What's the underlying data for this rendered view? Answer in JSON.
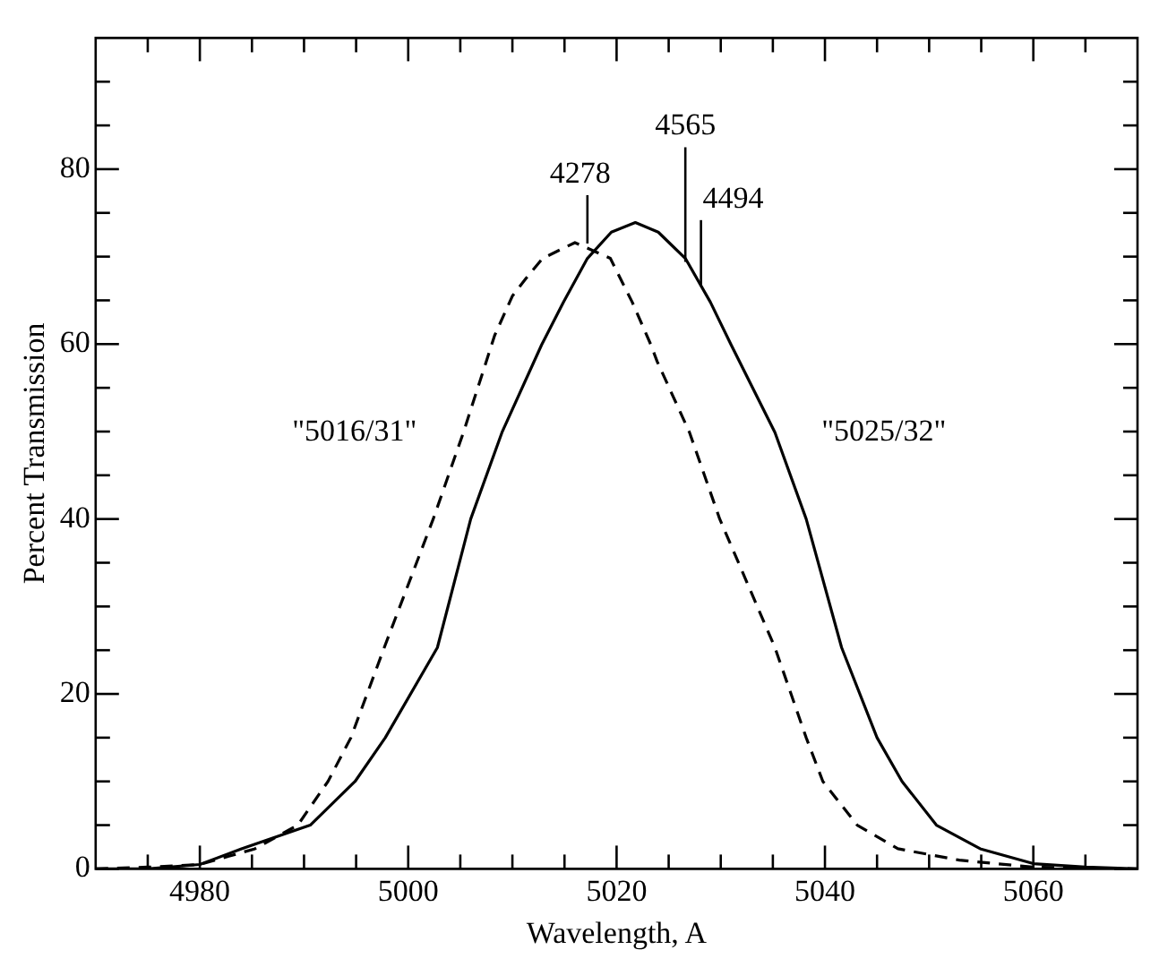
{
  "chart_data": {
    "type": "line",
    "xlabel": "Wavelength, A",
    "ylabel": "Percent Transmission",
    "xlim": [
      4970,
      5070
    ],
    "ylim": [
      0,
      95
    ],
    "xticks": [
      {
        "value": 4975,
        "label": null
      },
      4980,
      {
        "value": 4985,
        "label": null
      },
      {
        "value": 4990,
        "label": null
      },
      {
        "value": 4995,
        "label": null
      },
      5000,
      {
        "value": 5005,
        "label": null
      },
      {
        "value": 5010,
        "label": null
      },
      {
        "value": 5015,
        "label": null
      },
      5020,
      {
        "value": 5025,
        "label": null
      },
      {
        "value": 5030,
        "label": null
      },
      {
        "value": 5035,
        "label": null
      },
      5040,
      {
        "value": 5045,
        "label": null
      },
      {
        "value": 5050,
        "label": null
      },
      {
        "value": 5055,
        "label": null
      },
      5060,
      {
        "value": 5065,
        "label": null
      }
    ],
    "yticks": [
      0,
      {
        "value": 5,
        "label": null
      },
      {
        "value": 10,
        "label": null
      },
      {
        "value": 15,
        "label": null
      },
      20,
      {
        "value": 25,
        "label": null
      },
      {
        "value": 30,
        "label": null
      },
      {
        "value": 35,
        "label": null
      },
      40,
      {
        "value": 45,
        "label": null
      },
      {
        "value": 50,
        "label": null
      },
      {
        "value": 55,
        "label": null
      },
      60,
      {
        "value": 65,
        "label": null
      },
      {
        "value": 70,
        "label": null
      },
      {
        "value": 75,
        "label": null
      },
      80,
      {
        "value": 85,
        "label": null
      },
      {
        "value": 90,
        "label": null
      }
    ],
    "marker": "none",
    "legend": false,
    "series": [
      {
        "name": "\"5016/31\"",
        "color": "#000000",
        "line_style": "dashed",
        "x": [
          4970,
          4975,
          4980,
          4985.3,
          4989.4,
          4992.3,
          4994.5,
          4997.7,
          5002.4,
          5005.3,
          5008.3,
          5010,
          5011.3,
          5012.9,
          5016,
          5019.4,
          5021.5,
          5023.3,
          5023.9,
          5027,
          5029.9,
          5035.2,
          5038.2,
          5039.8,
          5043.1,
          5047,
          5052.9,
          5060,
          5070
        ],
        "values": [
          0,
          0.2,
          0.5,
          2.3,
          5,
          10,
          15,
          25.3,
          40,
          49.9,
          61,
          65.5,
          67.5,
          69.8,
          71.6,
          69.8,
          64.8,
          59.9,
          58,
          49.9,
          40,
          25.3,
          15,
          10,
          5,
          2.3,
          1,
          0.2,
          0
        ]
      },
      {
        "name": "\"5025/32\"",
        "color": "#000000",
        "line_style": "solid",
        "x": [
          4970,
          4975,
          4980,
          4984,
          4990.6,
          4994.9,
          4997.8,
          5002.8,
          5006,
          5009,
          5012.8,
          5014.9,
          5017.2,
          5019.5,
          5021.8,
          5024,
          5026.6,
          5029,
          5031,
          5035.2,
          5038.2,
          5041.6,
          5045,
          5047.4,
          5050.7,
          5054.9,
          5060,
          5065,
          5070
        ],
        "values": [
          0,
          0,
          0.5,
          2.3,
          5,
          10,
          15,
          25.3,
          40,
          49.9,
          59.9,
          64.8,
          69.8,
          72.8,
          73.9,
          72.8,
          69.8,
          64.8,
          59.9,
          49.9,
          40,
          25.3,
          15,
          10,
          5,
          2.3,
          0.6,
          0.2,
          0
        ]
      }
    ],
    "annotations": [
      {
        "text": "4278",
        "x": 5017.2,
        "y": 71.5
      },
      {
        "text": "4565",
        "x": 5026.6,
        "y": 69.4
      },
      {
        "text": "4494",
        "x": 5028.1,
        "y": 66.6
      }
    ]
  }
}
